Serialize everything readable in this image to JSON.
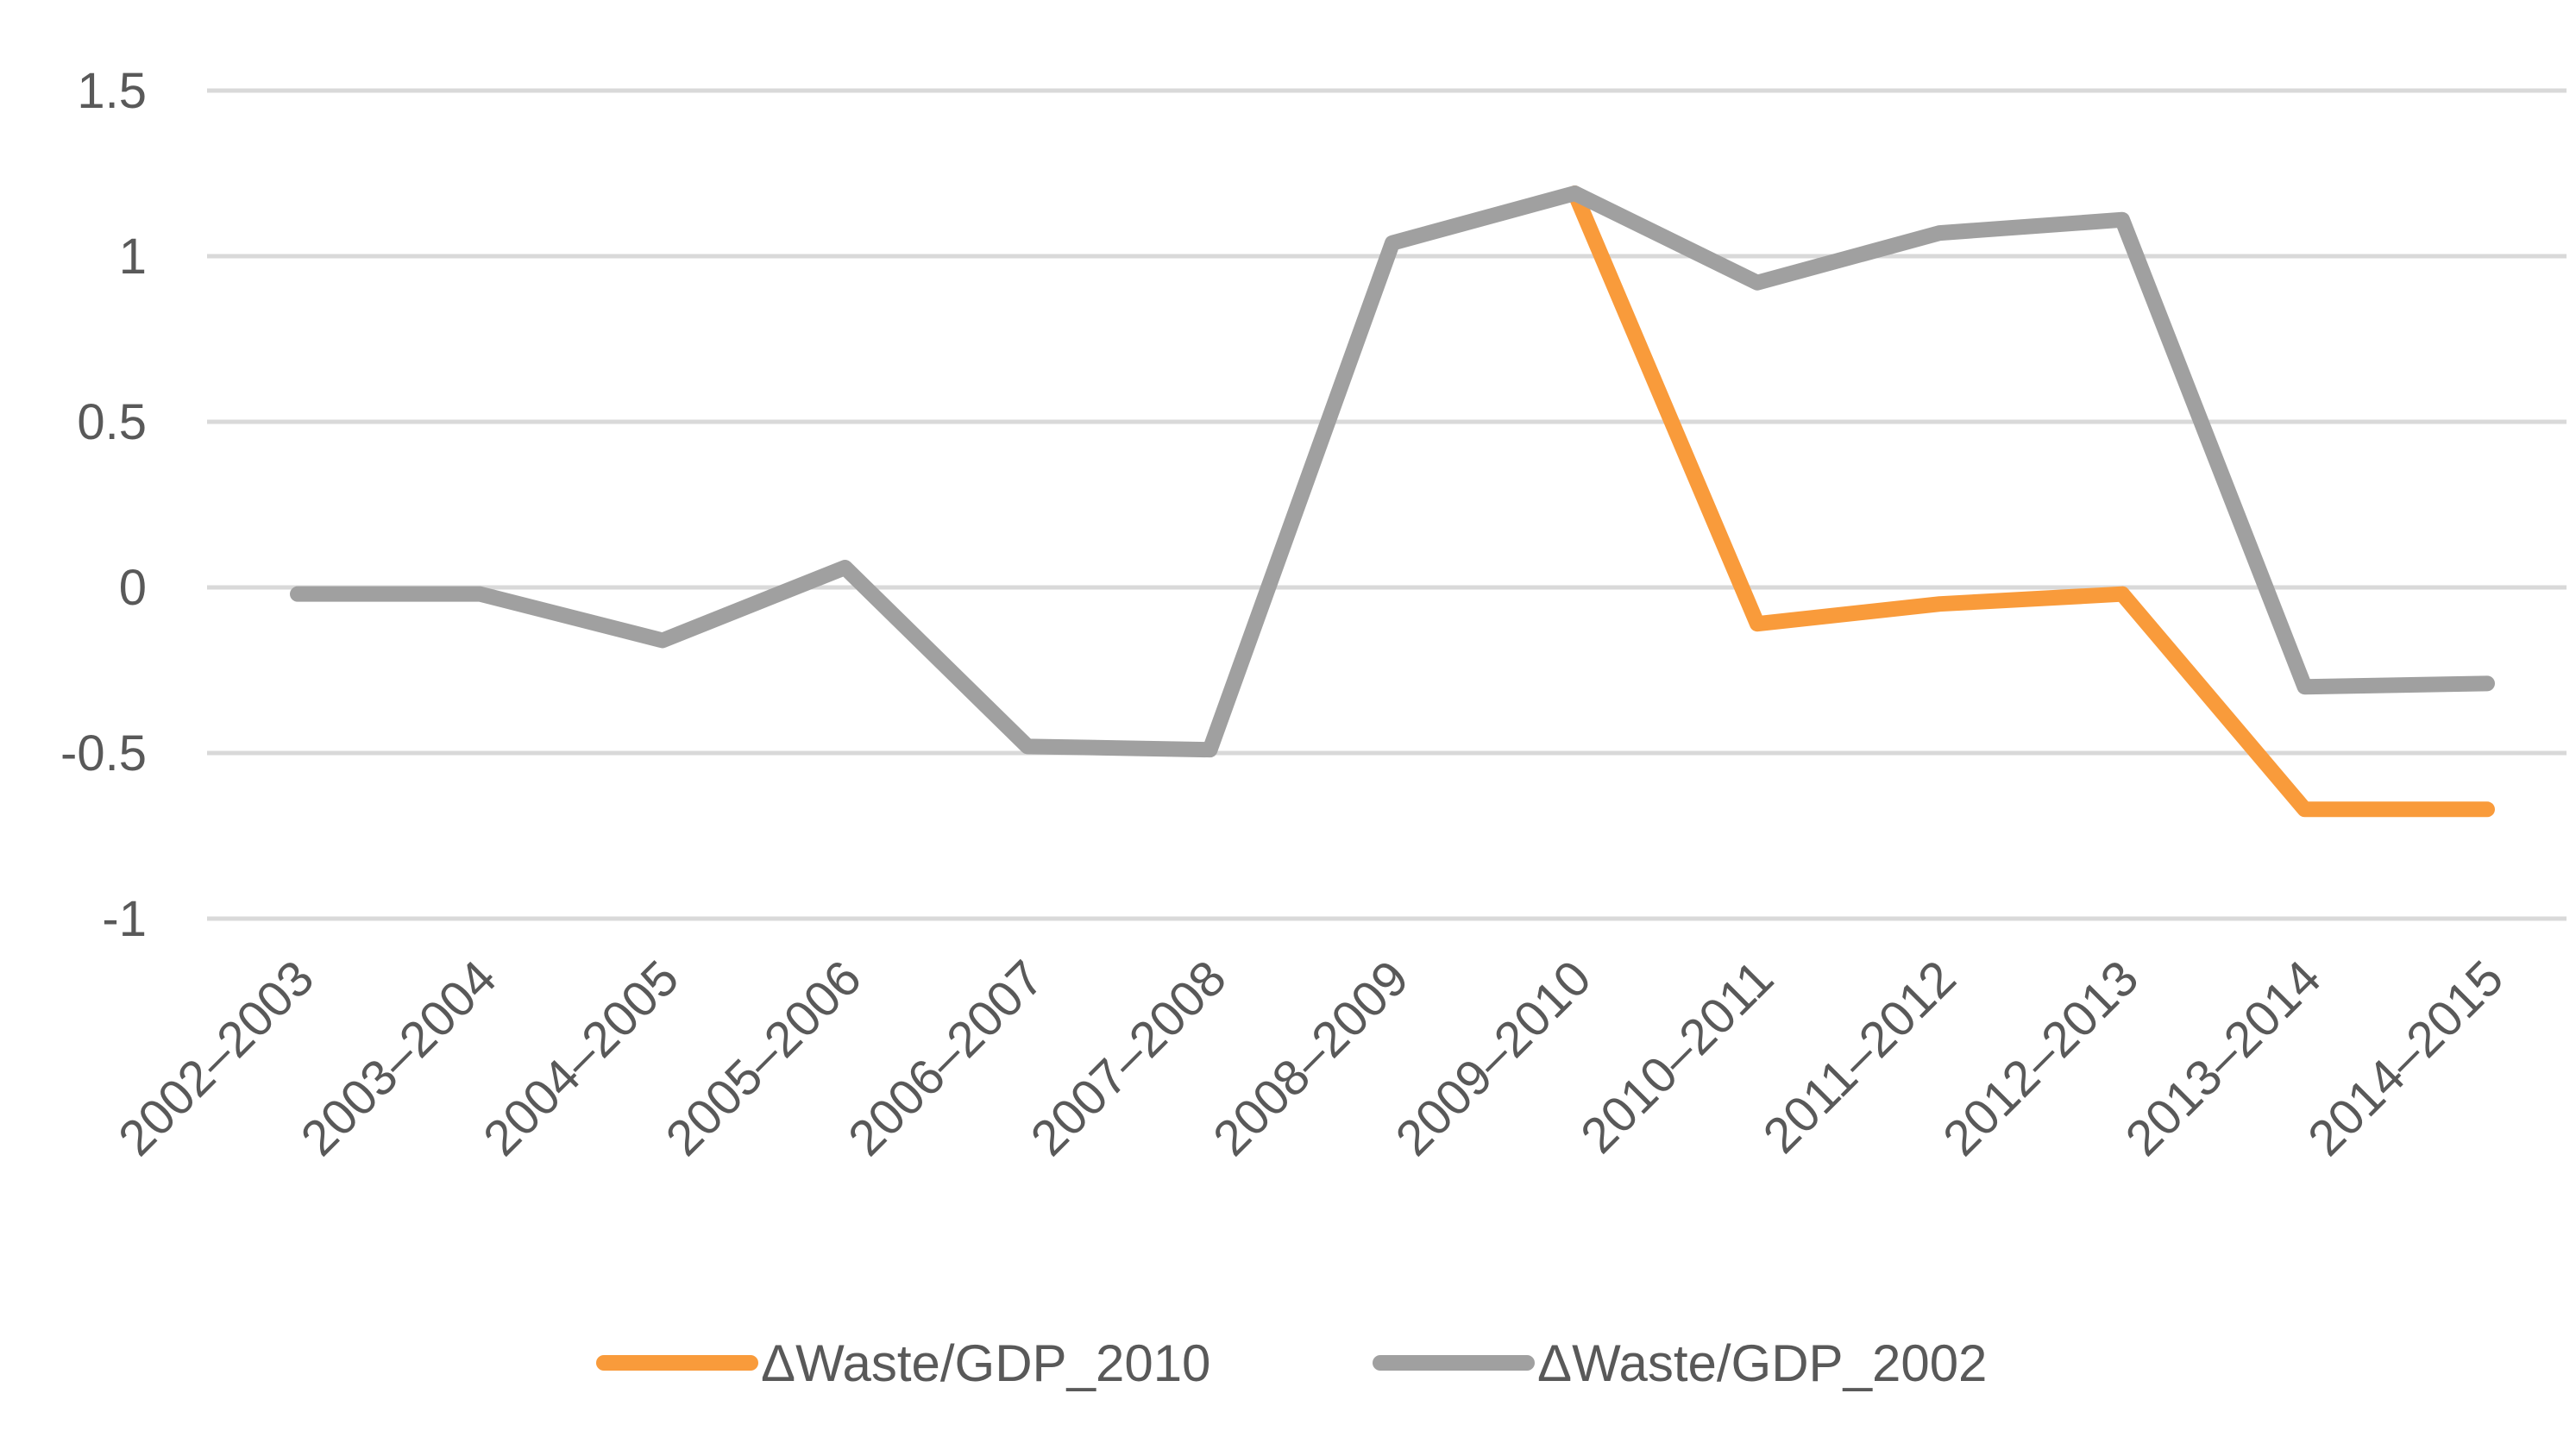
{
  "chart_data": {
    "type": "line",
    "title": "",
    "xlabel": "",
    "ylabel": "",
    "ylim": [
      -1,
      1.5
    ],
    "yticks": [
      -1,
      -0.5,
      0,
      0.5,
      1,
      1.5
    ],
    "ytick_labels": [
      "-1",
      "-0.5",
      "0",
      "0.5",
      "1",
      "1.5"
    ],
    "grid": true,
    "legend_position": "bottom-center",
    "categories": [
      "2002–2003",
      "2003–2004",
      "2004–2005",
      "2005–2006",
      "2006–2007",
      "2007–2008",
      "2008–2009",
      "2009–2010",
      "2010–2011",
      "2011–2012",
      "2012–2013",
      "2013–2014",
      "2014–2015"
    ],
    "series": [
      {
        "name": "ΔWaste/GDP_2010",
        "color": "#F99B3B",
        "start_index": 7,
        "values": [
          null,
          null,
          null,
          null,
          null,
          null,
          null,
          1.19,
          -0.11,
          -0.05,
          -0.02,
          -0.67,
          -0.67
        ]
      },
      {
        "name": "ΔWaste/GDP_2002",
        "color": "#A0A0A0",
        "start_index": 0,
        "values": [
          -0.02,
          -0.02,
          -0.16,
          0.06,
          -0.48,
          -0.49,
          1.04,
          1.19,
          0.92,
          1.07,
          1.11,
          -0.3,
          -0.29
        ]
      }
    ],
    "colors": {
      "grid": "#D9D9D9",
      "text": "#595959"
    }
  }
}
